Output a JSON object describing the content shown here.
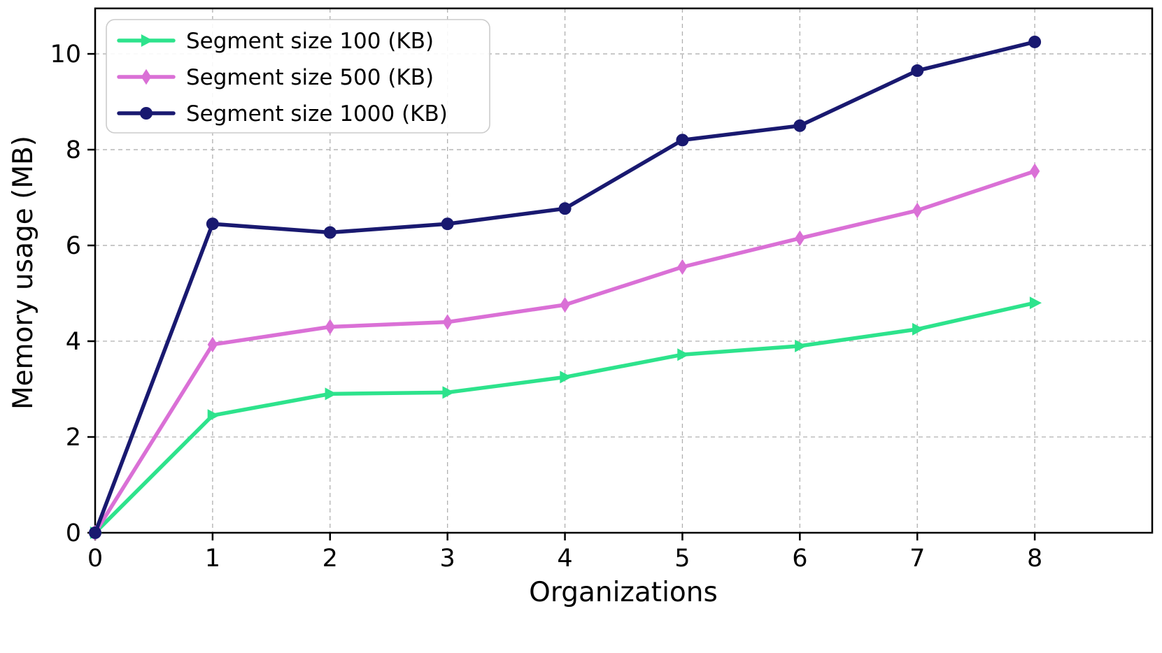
{
  "chart_data": {
    "type": "line",
    "title": "",
    "xlabel": "Organizations",
    "ylabel": "Memory usage (MB)",
    "x": [
      0,
      1,
      2,
      3,
      4,
      5,
      6,
      7,
      8
    ],
    "series": [
      {
        "name": "Segment size 100 (KB)",
        "color": "#2de38c",
        "marker": "triangle-right",
        "values": [
          0,
          2.45,
          2.9,
          2.93,
          3.25,
          3.72,
          3.9,
          4.25,
          4.8
        ]
      },
      {
        "name": "Segment size 500 (KB)",
        "color": "#da70d6",
        "marker": "diamond",
        "values": [
          0,
          3.93,
          4.3,
          4.4,
          4.76,
          5.55,
          6.15,
          6.73,
          7.55
        ]
      },
      {
        "name": "Segment size 1000 (KB)",
        "color": "#191970",
        "marker": "circle",
        "values": [
          0,
          6.45,
          6.27,
          6.45,
          6.77,
          8.2,
          8.5,
          9.65,
          10.25
        ]
      }
    ],
    "xlim": [
      0,
      9
    ],
    "ylim": [
      0,
      10.95
    ],
    "xticks": [
      0,
      1,
      2,
      3,
      4,
      5,
      6,
      7,
      8
    ],
    "yticks": [
      0,
      2,
      4,
      6,
      8,
      10
    ],
    "grid": true,
    "legend_position": "upper left",
    "colors": {
      "grid": "#b0b0b0",
      "axis": "#000000",
      "legend_border": "#cccccc",
      "background": "#ffffff"
    }
  }
}
